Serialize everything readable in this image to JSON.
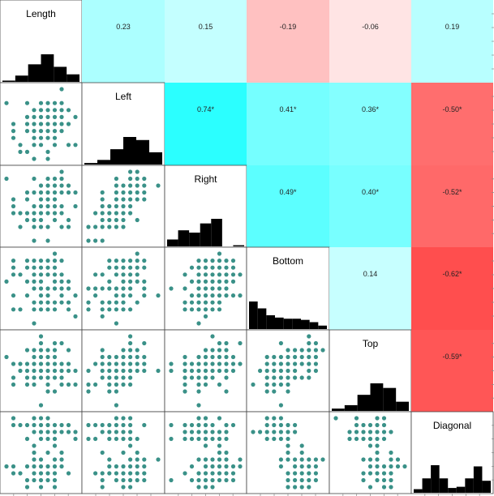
{
  "chart_data": {
    "type": "scatter",
    "variables": [
      "Length",
      "Left",
      "Right",
      "Bottom",
      "Top",
      "Diagonal"
    ],
    "correlations": [
      {
        "row": 0,
        "col": 1,
        "value": 0.23,
        "label": "0.23"
      },
      {
        "row": 0,
        "col": 2,
        "value": 0.15,
        "label": "0.15"
      },
      {
        "row": 0,
        "col": 3,
        "value": -0.19,
        "label": "-0.19"
      },
      {
        "row": 0,
        "col": 4,
        "value": -0.06,
        "label": "-0.06"
      },
      {
        "row": 0,
        "col": 5,
        "value": 0.19,
        "label": "0.19"
      },
      {
        "row": 1,
        "col": 2,
        "value": 0.74,
        "label": "0.74*"
      },
      {
        "row": 1,
        "col": 3,
        "value": 0.41,
        "label": "0.41*"
      },
      {
        "row": 1,
        "col": 4,
        "value": 0.36,
        "label": "0.36*"
      },
      {
        "row": 1,
        "col": 5,
        "value": -0.5,
        "label": "-0.50*"
      },
      {
        "row": 2,
        "col": 3,
        "value": 0.49,
        "label": "0.49*"
      },
      {
        "row": 2,
        "col": 4,
        "value": 0.4,
        "label": "0.40*"
      },
      {
        "row": 2,
        "col": 5,
        "value": -0.52,
        "label": "-0.52*"
      },
      {
        "row": 3,
        "col": 4,
        "value": 0.14,
        "label": "0.14"
      },
      {
        "row": 3,
        "col": 5,
        "value": -0.62,
        "label": "-0.62*"
      },
      {
        "row": 4,
        "col": 5,
        "value": -0.59,
        "label": "-0.59*"
      }
    ],
    "histograms": [
      {
        "variable": "Length",
        "counts": [
          1,
          5,
          14,
          22,
          12,
          6
        ]
      },
      {
        "variable": "Left",
        "counts": [
          1,
          3,
          10,
          18,
          16,
          8
        ]
      },
      {
        "variable": "Right",
        "counts": [
          6,
          14,
          12,
          20,
          24,
          0,
          1
        ]
      },
      {
        "variable": "Bottom",
        "counts": [
          24,
          18,
          12,
          10,
          9,
          9,
          8,
          6,
          3
        ]
      },
      {
        "variable": "Top",
        "counts": [
          2,
          5,
          14,
          24,
          20,
          8
        ]
      },
      {
        "variable": "Diagonal",
        "counts": [
          3,
          12,
          23,
          12,
          4,
          5,
          12,
          22,
          10
        ]
      }
    ],
    "colors": {
      "point": "#3a9188",
      "positive": "#00ffff",
      "negative": "#ff2020",
      "hist": "#000000",
      "axis": "#888888"
    }
  }
}
